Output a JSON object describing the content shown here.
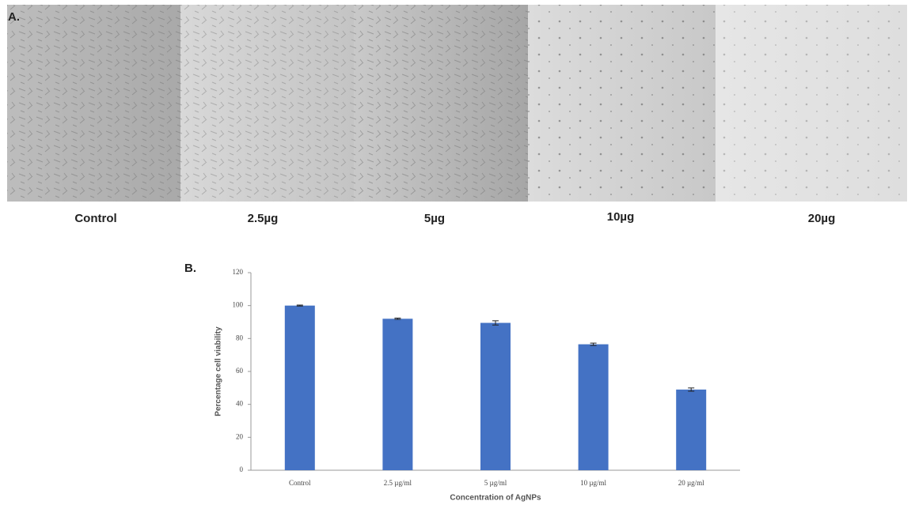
{
  "panel_a": {
    "label": "A.",
    "captions": [
      "Control",
      "2.5µg",
      "5µg",
      "10µg",
      "20µg"
    ]
  },
  "chart_data": {
    "type": "bar",
    "panel_label": "B.",
    "xlabel": "Concentration of AgNPs",
    "ylabel": "Percentage cell viability",
    "categories": [
      "Control",
      "2.5 µg/ml",
      "5 µg/ml",
      "10 µg/ml",
      "20 µg/ml"
    ],
    "values": [
      100,
      92,
      89.5,
      76.5,
      49
    ],
    "errors": [
      0.3,
      0.4,
      1.3,
      0.7,
      1
    ],
    "color": "#4472c4",
    "ylim": [
      0,
      120
    ],
    "yticks": [
      0,
      20,
      40,
      60,
      80,
      100,
      120
    ],
    "grid": false
  }
}
